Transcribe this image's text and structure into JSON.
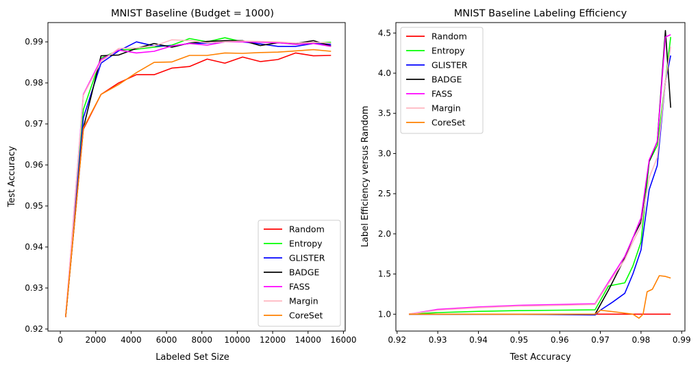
{
  "chart_data": [
    {
      "type": "line",
      "title": "MNIST Baseline (Budget = 1000)",
      "xlabel": "Labeled Set Size",
      "ylabel": "Test Accuracy",
      "xlim": [
        -700,
        16100
      ],
      "ylim": [
        0.9195,
        0.9947
      ],
      "xticks": [
        0,
        2000,
        4000,
        6000,
        8000,
        10000,
        12000,
        14000,
        16000
      ],
      "xtick_labels": [
        "0",
        "2000",
        "4000",
        "6000",
        "8000",
        "10000",
        "12000",
        "14000",
        "16000"
      ],
      "yticks": [
        0.92,
        0.93,
        0.94,
        0.95,
        0.96,
        0.97,
        0.98,
        0.99
      ],
      "ytick_labels": [
        "0.92",
        "0.93",
        "0.94",
        "0.95",
        "0.96",
        "0.97",
        "0.98",
        "0.99"
      ],
      "grid": false,
      "legend_position": "lower-right",
      "x": [
        300,
        1300,
        2300,
        3300,
        4300,
        5300,
        6300,
        7300,
        8300,
        9300,
        10300,
        11300,
        12300,
        13300,
        14300,
        15300
      ],
      "series": [
        {
          "name": "Random",
          "color": "#ff0000",
          "values": [
            0.9229,
            0.9687,
            0.9772,
            0.98,
            0.982,
            0.982,
            0.9836,
            0.984,
            0.9858,
            0.9848,
            0.9863,
            0.9852,
            0.9857,
            0.9873,
            0.9866,
            0.9867
          ]
        },
        {
          "name": "Entropy",
          "color": "#00ff00",
          "values": [
            0.9229,
            0.9735,
            0.986,
            0.988,
            0.9882,
            0.9887,
            0.9892,
            0.9908,
            0.99,
            0.991,
            0.99,
            0.99,
            0.9898,
            0.9894,
            0.9897,
            0.9899
          ]
        },
        {
          "name": "GLISTER",
          "color": "#0000ff",
          "values": [
            0.9229,
            0.9715,
            0.9848,
            0.9878,
            0.99,
            0.989,
            0.989,
            0.9896,
            0.9897,
            0.99,
            0.99,
            0.9895,
            0.9889,
            0.9889,
            0.9896,
            0.9894
          ]
        },
        {
          "name": "BADGE",
          "color": "#000000",
          "values": [
            0.9229,
            0.969,
            0.9866,
            0.9868,
            0.9884,
            0.9896,
            0.9887,
            0.9897,
            0.9901,
            0.9903,
            0.9903,
            0.9891,
            0.9898,
            0.9896,
            0.9903,
            0.989
          ]
        },
        {
          "name": "FASS",
          "color": "#ff00ff",
          "values": [
            0.9229,
            0.9772,
            0.9857,
            0.988,
            0.9873,
            0.9877,
            0.989,
            0.9896,
            0.9892,
            0.99,
            0.99,
            0.9899,
            0.9898,
            0.9894,
            0.9896,
            0.9889
          ]
        },
        {
          "name": "Margin",
          "color": "#ffb6c1",
          "values": [
            0.9229,
            0.977,
            0.9852,
            0.9884,
            0.9885,
            0.989,
            0.9905,
            0.9903,
            0.9898,
            0.99,
            0.9902,
            0.9901,
            0.99,
            0.9897,
            0.9899,
            0.9897
          ]
        },
        {
          "name": "CoreSet",
          "color": "#ff8000",
          "values": [
            0.9229,
            0.969,
            0.9772,
            0.9796,
            0.9825,
            0.985,
            0.9851,
            0.9867,
            0.9867,
            0.9873,
            0.9872,
            0.9874,
            0.9875,
            0.9878,
            0.9881,
            0.9877
          ]
        }
      ]
    },
    {
      "type": "line",
      "title": "MNIST Baseline Labeling Efficiency",
      "xlabel": "Test Accuracy",
      "ylabel": "Label Efficiency versus Random",
      "xlim": [
        0.9197,
        0.9908
      ],
      "ylim": [
        0.79,
        4.63
      ],
      "xticks": [
        0.92,
        0.93,
        0.94,
        0.95,
        0.96,
        0.97,
        0.98,
        0.99
      ],
      "xtick_labels": [
        "0.92",
        "0.93",
        "0.94",
        "0.95",
        "0.96",
        "0.97",
        "0.98",
        "0.99"
      ],
      "yticks": [
        1.0,
        1.5,
        2.0,
        2.5,
        3.0,
        3.5,
        4.0,
        4.5
      ],
      "ytick_labels": [
        "1.0",
        "1.5",
        "2.0",
        "2.5",
        "3.0",
        "3.5",
        "4.0",
        "4.5"
      ],
      "grid": false,
      "legend_position": "upper-left",
      "series": [
        {
          "name": "Random",
          "color": "#ff0000",
          "x": [
            0.9229,
            0.9687,
            0.977,
            0.98,
            0.982,
            0.984,
            0.986,
            0.9873
          ],
          "values": [
            1.0,
            1.0,
            1.0,
            1.0,
            1.0,
            1.0,
            1.0,
            1.0
          ]
        },
        {
          "name": "Entropy",
          "color": "#00ff00",
          "x": [
            0.9229,
            0.93,
            0.94,
            0.95,
            0.96,
            0.9687,
            0.972,
            0.976,
            0.978,
            0.98,
            0.982,
            0.984,
            0.986,
            0.9873
          ],
          "values": [
            1.0,
            1.02,
            1.035,
            1.045,
            1.05,
            1.055,
            1.35,
            1.39,
            1.6,
            1.9,
            2.9,
            3.1,
            3.9,
            4.45
          ]
        },
        {
          "name": "GLISTER",
          "color": "#0000ff",
          "x": [
            0.9229,
            0.93,
            0.95,
            0.9687,
            0.97,
            0.973,
            0.976,
            0.978,
            0.98,
            0.982,
            0.984,
            0.986,
            0.9873
          ],
          "values": [
            1.0,
            1.0,
            1.0,
            0.99,
            1.05,
            1.15,
            1.26,
            1.5,
            1.8,
            2.55,
            2.85,
            3.9,
            4.22
          ]
        },
        {
          "name": "BADGE",
          "color": "#000000",
          "x": [
            0.9229,
            0.93,
            0.95,
            0.9687,
            0.972,
            0.976,
            0.978,
            0.98,
            0.982,
            0.984,
            0.986,
            0.9873
          ],
          "values": [
            1.0,
            1.0,
            1.0,
            1.0,
            1.3,
            1.7,
            1.95,
            2.15,
            2.9,
            3.15,
            4.53,
            3.57
          ]
        },
        {
          "name": "FASS",
          "color": "#ff00ff",
          "x": [
            0.9229,
            0.93,
            0.94,
            0.95,
            0.96,
            0.9687,
            0.972,
            0.976,
            0.978,
            0.98,
            0.982,
            0.984,
            0.986,
            0.9873
          ],
          "values": [
            1.0,
            1.06,
            1.09,
            1.11,
            1.12,
            1.13,
            1.4,
            1.72,
            1.95,
            2.2,
            2.92,
            3.15,
            4.45,
            4.48
          ]
        },
        {
          "name": "Margin",
          "color": "#ffb6c1",
          "x": [
            0.9229,
            0.93,
            0.94,
            0.95,
            0.96,
            0.9687,
            0.972,
            0.976,
            0.978,
            0.98,
            0.982,
            0.984,
            0.986,
            0.9873
          ],
          "values": [
            1.0,
            1.05,
            1.08,
            1.1,
            1.11,
            1.12,
            1.38,
            1.68,
            1.9,
            2.1,
            2.7,
            2.95,
            3.9,
            4.33
          ]
        },
        {
          "name": "CoreSet",
          "color": "#ff8000",
          "x": [
            0.9229,
            0.9687,
            0.97,
            0.975,
            0.978,
            0.9795,
            0.9805,
            0.9815,
            0.9828,
            0.9845,
            0.986,
            0.9873
          ],
          "values": [
            1.0,
            1.0,
            1.05,
            1.02,
            1.0,
            0.95,
            1.0,
            1.28,
            1.31,
            1.48,
            1.47,
            1.45
          ]
        }
      ]
    }
  ]
}
